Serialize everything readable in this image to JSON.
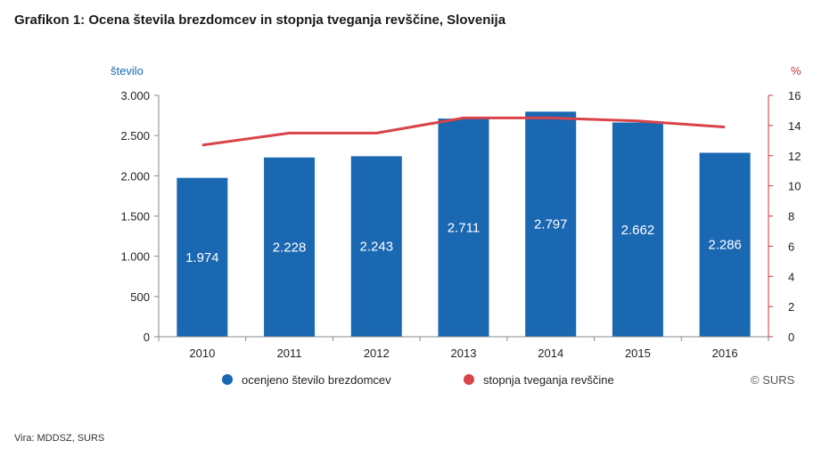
{
  "title": "Grafikon 1: Ocena števila brezdomcev in stopnja tveganja revščine, Slovenija",
  "source": "Vira: MDDSZ, SURS",
  "copyright": "© SURS",
  "colors": {
    "bar": "#1a67b2",
    "line": "#d9434a",
    "right_axis": "#d0333a",
    "left_axis_title": "#1a67b2"
  },
  "chart_data": {
    "type": "bar",
    "categories": [
      "2010",
      "2011",
      "2012",
      "2013",
      "2014",
      "2015",
      "2016"
    ],
    "series": [
      {
        "name": "ocenjeno število brezdomcev",
        "type": "bar",
        "axis": "left",
        "values": [
          1974,
          2228,
          2243,
          2711,
          2797,
          2662,
          2286
        ],
        "labels": [
          "1.974",
          "2.228",
          "2.243",
          "2.711",
          "2.797",
          "2.662",
          "2.286"
        ]
      },
      {
        "name": "stopnja tveganja revščine",
        "type": "line",
        "axis": "right",
        "values": [
          12.7,
          13.5,
          13.5,
          14.5,
          14.5,
          14.3,
          13.9
        ]
      }
    ],
    "y_left": {
      "label": "število",
      "lim": [
        0,
        3000
      ],
      "ticks": [
        0,
        500,
        1000,
        1500,
        2000,
        2500,
        3000
      ],
      "tick_labels": [
        "0",
        "500",
        "1.000",
        "1.500",
        "2.000",
        "2.500",
        "3.000"
      ]
    },
    "y_right": {
      "label": "%",
      "lim": [
        0,
        16
      ],
      "ticks": [
        0,
        2,
        4,
        6,
        8,
        10,
        12,
        14,
        16
      ],
      "tick_labels": [
        "0",
        "2",
        "4",
        "6",
        "8",
        "10",
        "12",
        "14",
        "16"
      ]
    },
    "legend_position": "bottom",
    "grid": false
  }
}
